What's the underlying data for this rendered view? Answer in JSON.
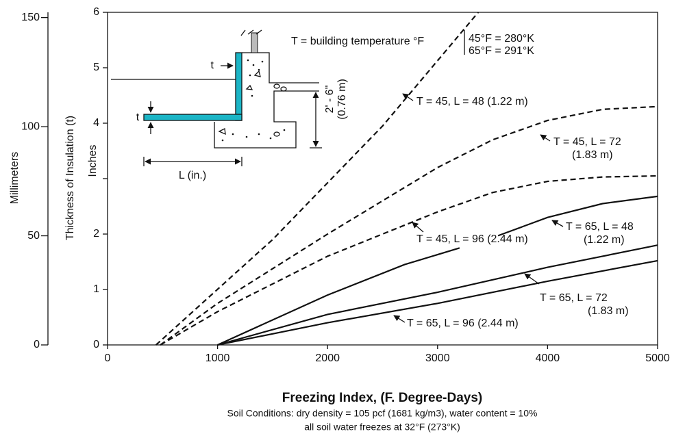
{
  "chart_data": {
    "type": "line",
    "xlabel": "Freezing Index, (F. Degree-Days)",
    "notes": [
      "Soil Conditions: dry density = 105 pcf (1681 kg/m3), water content = 10%",
      "all soil water freezes at 32°F (273°K)"
    ],
    "ylabel": "Thickness of Insulation (t)",
    "yunit": "Inches",
    "y2unit": "Millimeters",
    "xlim": [
      0,
      5000
    ],
    "xticks": [
      0,
      1000,
      2000,
      3000,
      4000,
      5000
    ],
    "ylim": [
      0,
      6
    ],
    "yticks": [
      0,
      1,
      2,
      4,
      5,
      6
    ],
    "y2lim": [
      0,
      152.4
    ],
    "y2ticks": [
      0,
      50,
      100,
      150
    ],
    "legend_text": [
      "T = building temperature °F",
      "45°F = 280°K",
      "65°F = 291°K"
    ],
    "diagram_labels": [
      "t",
      "t",
      "L (in.)",
      "2' - 6\"",
      "(0.76 m)"
    ],
    "series": [
      {
        "name": "T = 45, L = 48 (1.22 m)",
        "style": "dashed",
        "color": "#111111",
        "x": [
          440,
          1500,
          2500,
          3370
        ],
        "values": [
          0,
          1.9,
          3.95,
          6
        ]
      },
      {
        "name": "T = 45, L = 72 (1.83 m)",
        "style": "dashed",
        "color": "#111111",
        "x": [
          480,
          1000,
          2000,
          3000,
          3500,
          4000,
          4500,
          5000
        ],
        "values": [
          0,
          0.75,
          2.0,
          3.2,
          3.7,
          4.05,
          4.25,
          4.3
        ]
      },
      {
        "name": "T = 45, L = 96 (2.44 m)",
        "style": "dashed",
        "color": "#111111",
        "x": [
          480,
          1000,
          2000,
          3000,
          3500,
          4000,
          4500,
          5000
        ],
        "values": [
          0,
          0.6,
          1.6,
          2.4,
          2.75,
          2.95,
          3.03,
          3.05
        ]
      },
      {
        "name": "T = 65, L = 48 (1.22 m)",
        "style": "solid",
        "color": "#111111",
        "x": [
          1000,
          2000,
          2700,
          3200,
          3400,
          3550,
          4000,
          4500,
          5000
        ],
        "values": [
          0,
          0.9,
          1.45,
          1.75,
          null,
          1.97,
          2.3,
          2.55,
          2.68
        ]
      },
      {
        "name": "T = 65, L = 72 (1.83 m)",
        "style": "solid",
        "color": "#111111",
        "x": [
          1000,
          2000,
          3000,
          4000,
          4500,
          5000
        ],
        "values": [
          0,
          0.55,
          0.95,
          1.4,
          1.6,
          1.8
        ]
      },
      {
        "name": "T = 65, L = 96 (2.44 m)",
        "style": "solid",
        "color": "#111111",
        "x": [
          1000,
          2000,
          3000,
          4000,
          5000
        ],
        "values": [
          0,
          0.4,
          0.75,
          1.15,
          1.52
        ]
      }
    ],
    "annotations": [
      {
        "lines": [
          "T = 45, L = 48 (1.22 m)"
        ]
      },
      {
        "lines": [
          "T = 45, L = 72",
          "(1.83 m)"
        ]
      },
      {
        "lines": [
          "T = 45, L = 96 (2.44 m)"
        ]
      },
      {
        "lines": [
          "T = 65, L = 48",
          "(1.22 m)"
        ]
      },
      {
        "lines": [
          "T = 65, L = 72",
          "(1.83 m)"
        ]
      },
      {
        "lines": [
          "T = 65, L = 96 (2.44 m)"
        ]
      }
    ],
    "diagram_fill": "#1bb5c6"
  }
}
